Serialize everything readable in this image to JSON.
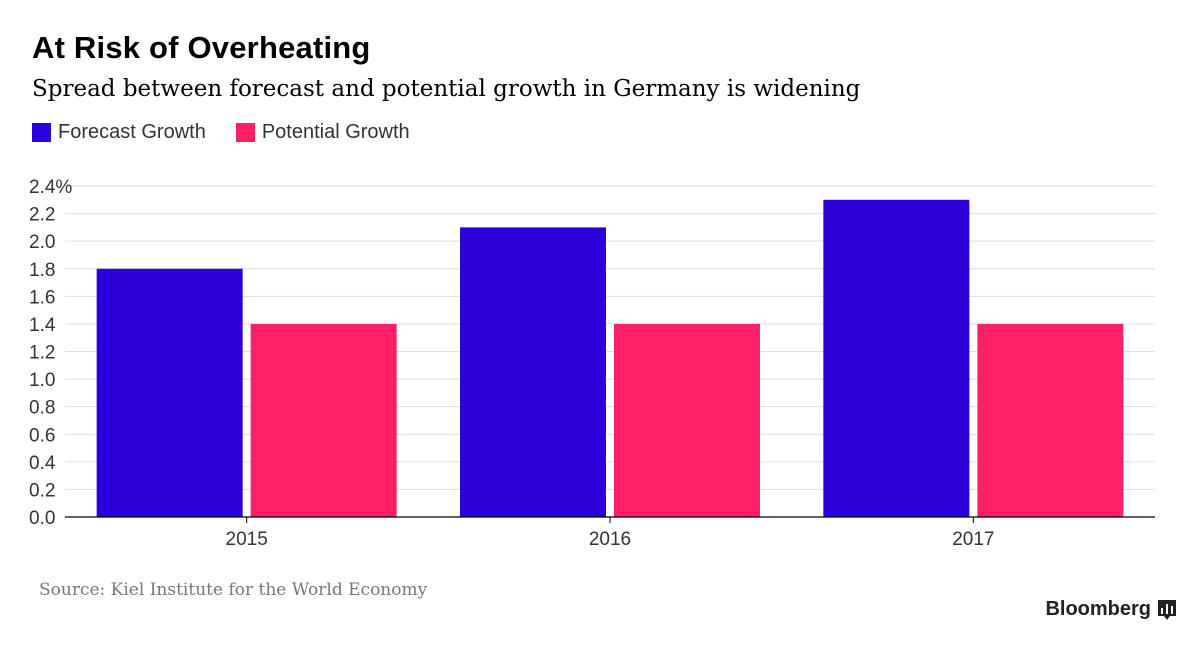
{
  "title": "At Risk of Overheating",
  "subtitle": "Spread between forecast and potential growth in Germany is widening",
  "source": "Source: Kiel Institute for the World Economy",
  "brand": "Bloomberg",
  "brand_icon": "bloomberg-chart-icon",
  "colors": {
    "forecast": "#2b00d9",
    "potential": "#ff1f66",
    "grid": "#dddddd",
    "axis": "#000000",
    "tick_text": "#333333"
  },
  "chart_data": {
    "type": "bar",
    "title": "At Risk of Overheating",
    "subtitle": "Spread between forecast and potential growth in Germany is widening",
    "categories": [
      "2015",
      "2016",
      "2017"
    ],
    "series": [
      {
        "name": "Forecast Growth",
        "values": [
          1.8,
          2.1,
          2.3
        ]
      },
      {
        "name": "Potential Growth",
        "values": [
          1.4,
          1.4,
          1.4
        ]
      }
    ],
    "ylim": [
      0,
      2.4
    ],
    "yticks": [
      "0.0",
      "0.2",
      "0.4",
      "0.6",
      "0.8",
      "1.0",
      "1.2",
      "1.4",
      "1.6",
      "1.8",
      "2.0",
      "2.2",
      "2.4%"
    ],
    "xlabel": "",
    "ylabel": "",
    "grid": true,
    "legend": "top-left"
  }
}
